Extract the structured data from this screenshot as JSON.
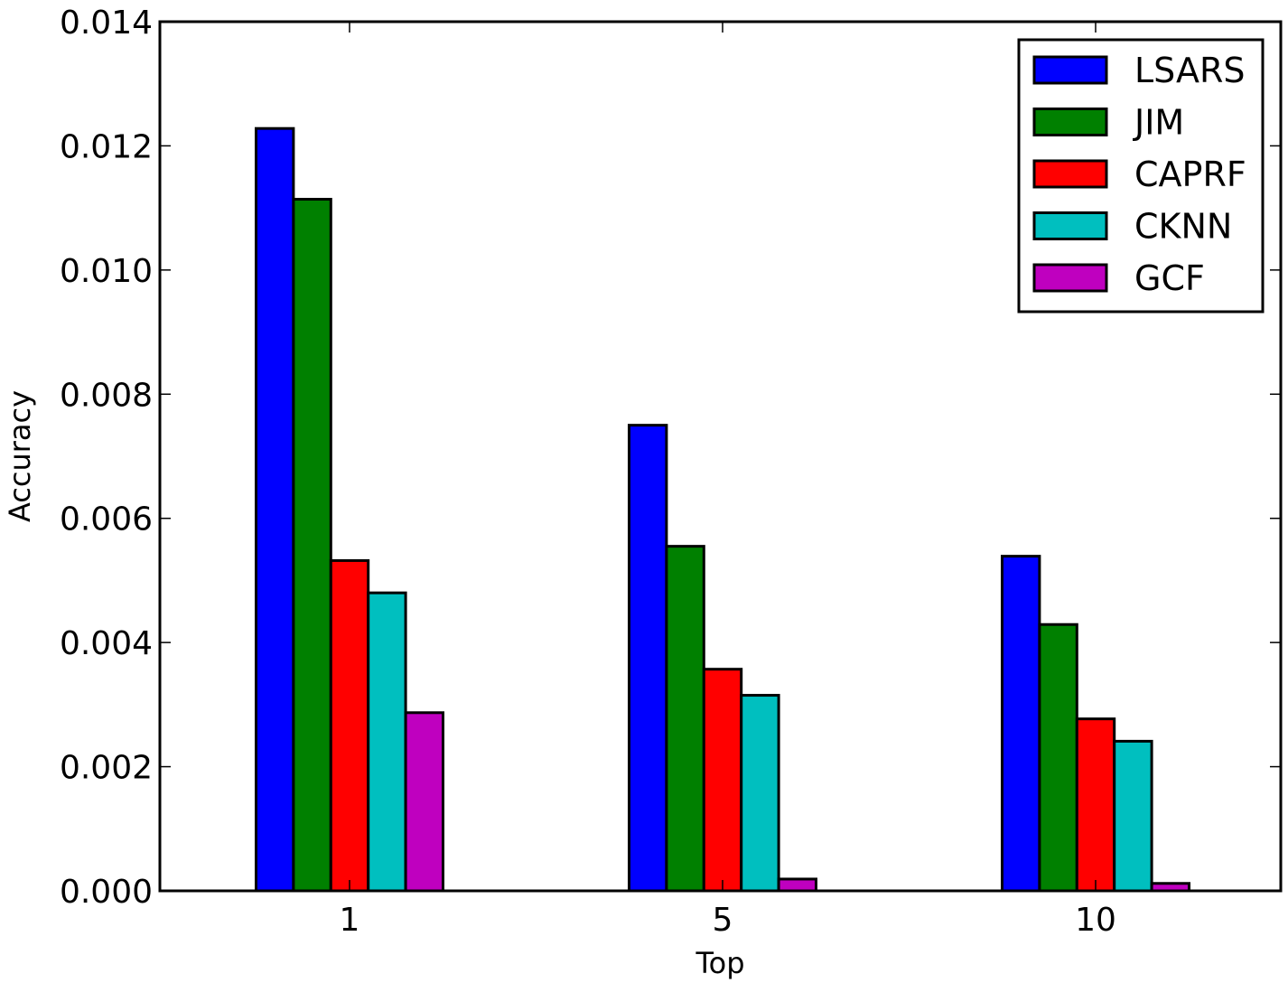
{
  "chart_data": {
    "type": "bar",
    "title": "",
    "xlabel": "Top",
    "ylabel": "Accuracy",
    "categories": [
      "1",
      "5",
      "10"
    ],
    "ylim": [
      0,
      0.014
    ],
    "yticks": [
      "0.000",
      "0.002",
      "0.004",
      "0.006",
      "0.008",
      "0.010",
      "0.012",
      "0.014"
    ],
    "grid": false,
    "legend_position": "top-right",
    "series": [
      {
        "name": "LSARS",
        "color": "#0000ff",
        "values": [
          0.01228,
          0.0075,
          0.00539
        ]
      },
      {
        "name": "JIM",
        "color": "#008000",
        "values": [
          0.01114,
          0.00555,
          0.00429
        ]
      },
      {
        "name": "CAPRF",
        "color": "#ff0000",
        "values": [
          0.00532,
          0.00357,
          0.00277
        ]
      },
      {
        "name": "CKNN",
        "color": "#00bfbf",
        "values": [
          0.0048,
          0.00315,
          0.00241
        ]
      },
      {
        "name": "GCF",
        "color": "#bf00bf",
        "values": [
          0.00287,
          0.00019,
          0.00012
        ]
      }
    ]
  }
}
